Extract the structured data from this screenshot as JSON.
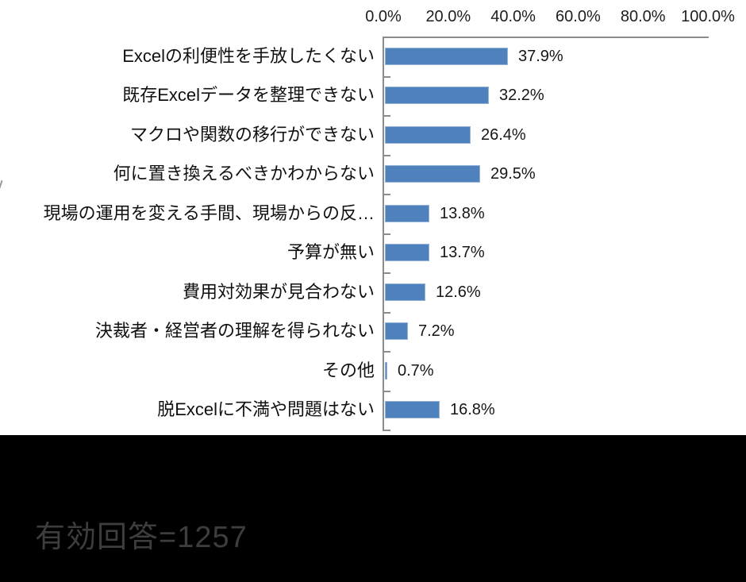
{
  "chart_data": {
    "type": "bar",
    "orientation": "horizontal",
    "title": "",
    "xlabel": "",
    "ylabel": "",
    "categories": [
      "Excelの利便性を手放したくない",
      "既存Excelデータを整理できない",
      "マクロや関数の移行ができない",
      "何に置き換えるべきかわからない",
      "現場の運用を変える手間、現場からの反…",
      "予算が無い",
      "費用対効果が見合わない",
      "決裁者・経営者の理解を得られない",
      "その他",
      "脱Excelに不満や問題はない"
    ],
    "values": [
      37.9,
      32.2,
      26.4,
      29.5,
      13.8,
      13.7,
      12.6,
      7.2,
      0.7,
      16.8
    ],
    "value_labels": [
      "37.9%",
      "32.2%",
      "26.4%",
      "29.5%",
      "13.8%",
      "13.7%",
      "12.6%",
      "7.2%",
      "0.7%",
      "16.8%"
    ],
    "x_tick_labels": [
      "0.0%",
      "20.0%",
      "40.0%",
      "60.0%",
      "80.0%",
      "100.0%"
    ],
    "xlim": [
      0,
      100
    ],
    "grid": false,
    "legend": false,
    "x_axis_position": "top",
    "bar_color": "#4f81bd",
    "bar_border_color": "#95b3d7",
    "axis_line_color": "#8c8c8c"
  },
  "footer": {
    "text": "有効回答=1257",
    "text_color": "#3d3d3d",
    "background": "#000000"
  }
}
